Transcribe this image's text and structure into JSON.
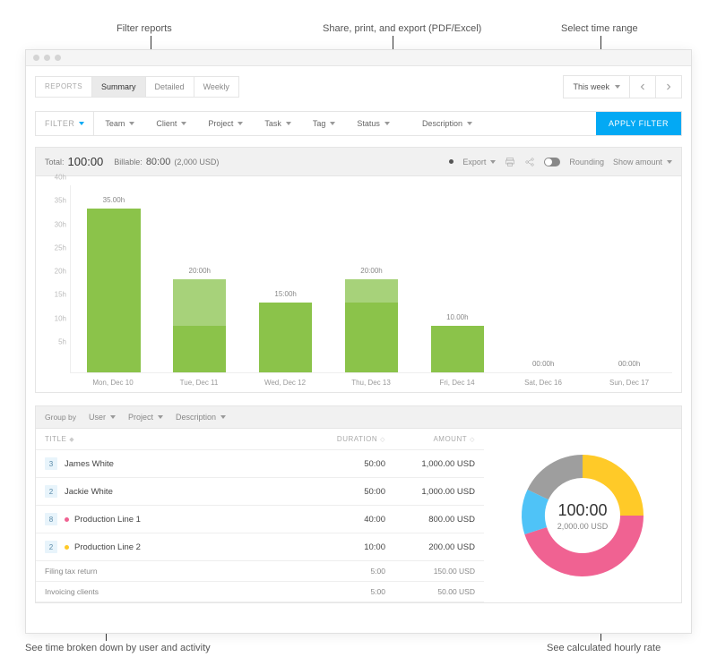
{
  "annotations": {
    "filter": "Filter reports",
    "export": "Share, print, and export (PDF/Excel)",
    "timerange": "Select time range",
    "breakdown": "See time broken down by user and activity",
    "rate": "See calculated hourly rate"
  },
  "tabs": {
    "label": "REPORTS",
    "items": [
      "Summary",
      "Detailed",
      "Weekly"
    ],
    "active": 0
  },
  "timeRange": {
    "label": "This week"
  },
  "filters": {
    "label": "FILTER",
    "items": [
      "Team",
      "Client",
      "Project",
      "Task",
      "Tag",
      "Status",
      "Description"
    ],
    "apply": "APPLY FILTER"
  },
  "totals": {
    "totalLabel": "Total:",
    "total": "100:00",
    "billableLabel": "Billable:",
    "billable": "80:00",
    "billableAmt": "(2,000 USD)",
    "export": "Export",
    "rounding": "Rounding",
    "showAmount": "Show amount"
  },
  "chart": {
    "type": "bar",
    "ymax": 40,
    "ystep": 5,
    "yunit": "h",
    "colors": {
      "billable": "#8bc34a",
      "nonbillable": "#a7d27a",
      "grid": "#eeeeee"
    },
    "days": [
      {
        "label": "Mon, Dec 10",
        "valueLabel": "35.00h",
        "billable": 35,
        "nonbillable": 0,
        "dollar": true
      },
      {
        "label": "Tue, Dec 11",
        "valueLabel": "20:00h",
        "billable": 10,
        "nonbillable": 10,
        "dollar": true
      },
      {
        "label": "Wed, Dec 12",
        "valueLabel": "15:00h",
        "billable": 15,
        "nonbillable": 0,
        "dollar": true
      },
      {
        "label": "Thu, Dec 13",
        "valueLabel": "20:00h",
        "billable": 15,
        "nonbillable": 5,
        "dollar": true
      },
      {
        "label": "Fri, Dec 14",
        "valueLabel": "10.00h",
        "billable": 10,
        "nonbillable": 0,
        "dollar": false
      },
      {
        "label": "Sat, Dec 16",
        "valueLabel": "00:00h",
        "billable": 0,
        "nonbillable": 0,
        "dollar": false
      },
      {
        "label": "Sun, Dec 17",
        "valueLabel": "00:00h",
        "billable": 0,
        "nonbillable": 0,
        "dollar": false
      }
    ]
  },
  "groupBy": {
    "label": "Group by",
    "items": [
      "User",
      "Project",
      "Description"
    ]
  },
  "table": {
    "headers": {
      "title": "TITLE",
      "duration": "DURATION",
      "amount": "AMOUNT"
    },
    "rows": [
      {
        "badge": "3",
        "title": "James White",
        "duration": "50:00",
        "amount": "1,000.00 USD",
        "dot": null
      },
      {
        "badge": "2",
        "title": "Jackie White",
        "duration": "50:00",
        "amount": "1,000.00 USD",
        "dot": null
      },
      {
        "badge": "8",
        "title": "Production Line 1",
        "duration": "40:00",
        "amount": "800.00 USD",
        "dot": "#f06292"
      },
      {
        "badge": "2",
        "title": "Production Line 2",
        "duration": "10:00",
        "amount": "200.00 USD",
        "dot": "#ffca28"
      },
      {
        "badge": null,
        "title": "Filing tax return",
        "duration": "5:00",
        "amount": "150.00 USD",
        "dot": null,
        "small": true
      },
      {
        "badge": null,
        "title": "Invoicing clients",
        "duration": "5:00",
        "amount": "50.00 USD",
        "dot": null,
        "small": true
      }
    ]
  },
  "donut": {
    "center": "100:00",
    "sub": "2,000.00 USD",
    "slices": [
      {
        "color": "#ffca28",
        "pct": 25
      },
      {
        "color": "#f06292",
        "pct": 45
      },
      {
        "color": "#4fc3f7",
        "pct": 12
      },
      {
        "color": "#9e9e9e",
        "pct": 18
      }
    ]
  }
}
